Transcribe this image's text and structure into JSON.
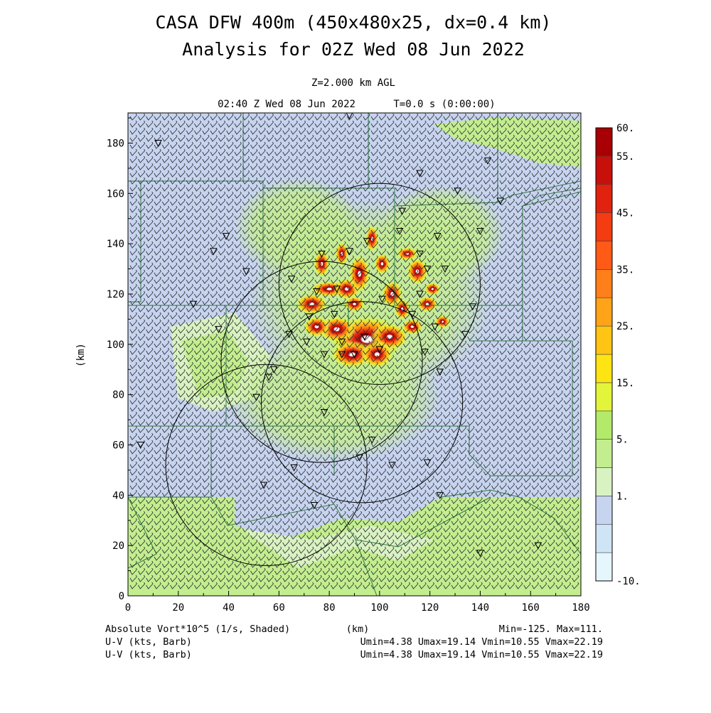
{
  "chart_data": {
    "type": "heatmap",
    "title": "CASA DFW 400m (450x480x25, dx=0.4 km)",
    "subtitle": "Analysis for 02Z Wed 08 Jun 2022",
    "level": "Z=2.000 km AGL",
    "time_label": "02:40 Z Wed 08 Jun 2022",
    "elapsed_label": "T=0.0 s (0:00:00)",
    "xlabel": "(km)",
    "ylabel": "(km)",
    "xlim": [
      0,
      180
    ],
    "ylim": [
      0,
      192
    ],
    "x_ticks": [
      "0",
      "20",
      "40",
      "60",
      "80",
      "100",
      "120",
      "140",
      "160",
      "180"
    ],
    "y_ticks": [
      "0",
      "20",
      "40",
      "60",
      "80",
      "100",
      "120",
      "140",
      "160",
      "180"
    ],
    "x_tick_values": [
      0,
      20,
      40,
      60,
      80,
      100,
      120,
      140,
      160,
      180
    ],
    "y_tick_values": [
      0,
      20,
      40,
      60,
      80,
      100,
      120,
      140,
      160,
      180
    ],
    "colorbar": {
      "labels": [
        "60.",
        "55.",
        "45.",
        "35.",
        "25.",
        "15.",
        "5.",
        "1.",
        "-10."
      ],
      "label_values": [
        60,
        55,
        45,
        35,
        25,
        15,
        5,
        1,
        -10
      ],
      "colors": [
        "#e6f6fd",
        "#cfe5f5",
        "#c7d4f0",
        "#d9f2c2",
        "#c3ee8f",
        "#b4ea6a",
        "#e3f53a",
        "#ffe414",
        "#ffc414",
        "#ffa319",
        "#ff7f1a",
        "#ff5a16",
        "#f53b12",
        "#e1220e",
        "#c8100b",
        "#a80004"
      ]
    },
    "field": "Absolute Vort*10^5 (1/s, Shaded)",
    "field_min_max": "Min=-125. Max=111.",
    "vectors": [
      {
        "name": "U-V (kts, Barb)",
        "stats": "Umin=4.38 Umax=19.14 Vmin=10.55 Vmax=22.19"
      },
      {
        "name": "U-V (kts, Barb)",
        "stats": "Umin=4.38 Umax=19.14 Vmin=10.55 Vmax=22.19"
      }
    ],
    "radar_range_rings": [
      {
        "x": 100,
        "y": 124,
        "r": 40
      },
      {
        "x": 77,
        "y": 93,
        "r": 40
      },
      {
        "x": 93,
        "y": 77,
        "r": 40
      },
      {
        "x": 55,
        "y": 52,
        "r": 40
      }
    ],
    "vorticity_core": {
      "x": 95,
      "y": 102
    }
  }
}
